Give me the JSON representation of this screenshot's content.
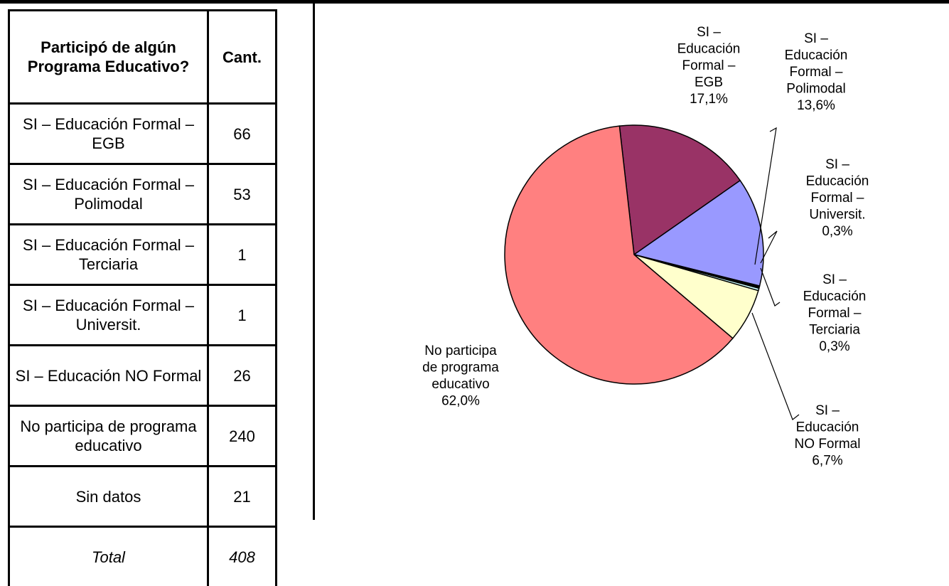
{
  "table": {
    "header_category": "Participó de algún Programa Educativo?",
    "header_qty": "Cant.",
    "rows": [
      {
        "category": "SI – Educación Formal – EGB",
        "qty": "66"
      },
      {
        "category": "SI – Educación Formal – Polimodal",
        "qty": "53"
      },
      {
        "category": "SI – Educación Formal – Terciaria",
        "qty": "1"
      },
      {
        "category": "SI – Educación Formal – Universit.",
        "qty": "1"
      },
      {
        "category": "SI – Educación NO Formal",
        "qty": "26"
      },
      {
        "category": "No participa de programa educativo",
        "qty": "240"
      },
      {
        "category": "Sin datos",
        "qty": "21"
      }
    ],
    "total_label": "Total",
    "total_qty": "408"
  },
  "chart_data": {
    "type": "pie",
    "title": "",
    "slices": [
      {
        "name": "SI – Educación Formal – EGB",
        "label_lines": [
          "SI –",
          "Educación",
          "Formal –",
          "EGB",
          "17,1%"
        ],
        "value": 17.1,
        "color": "#993366"
      },
      {
        "name": "SI – Educación Formal – Polimodal",
        "label_lines": [
          "SI –",
          "Educación",
          "Formal –",
          "Polimodal",
          "13,6%"
        ],
        "value": 13.6,
        "color": "#9999FF"
      },
      {
        "name": "SI – Educación Formal – Universit.",
        "label_lines": [
          "SI –",
          "Educación",
          "Formal –",
          "Universit.",
          "0,3%"
        ],
        "value": 0.3,
        "color": "#000000"
      },
      {
        "name": "SI – Educación Formal – Terciaria",
        "label_lines": [
          "SI –",
          "Educación",
          "Formal –",
          "Terciaria",
          "0,3%"
        ],
        "value": 0.3,
        "color": "#CCFFFF"
      },
      {
        "name": "SI – Educación NO Formal",
        "label_lines": [
          "SI –",
          "Educación",
          "NO Formal",
          "6,7%"
        ],
        "value": 6.7,
        "color": "#FFFFCC"
      },
      {
        "name": "No participa de programa educativo",
        "label_lines": [
          "No participa",
          "de programa",
          "educativo",
          "62,0%"
        ],
        "value": 62.0,
        "color": "#FF8080"
      }
    ]
  }
}
